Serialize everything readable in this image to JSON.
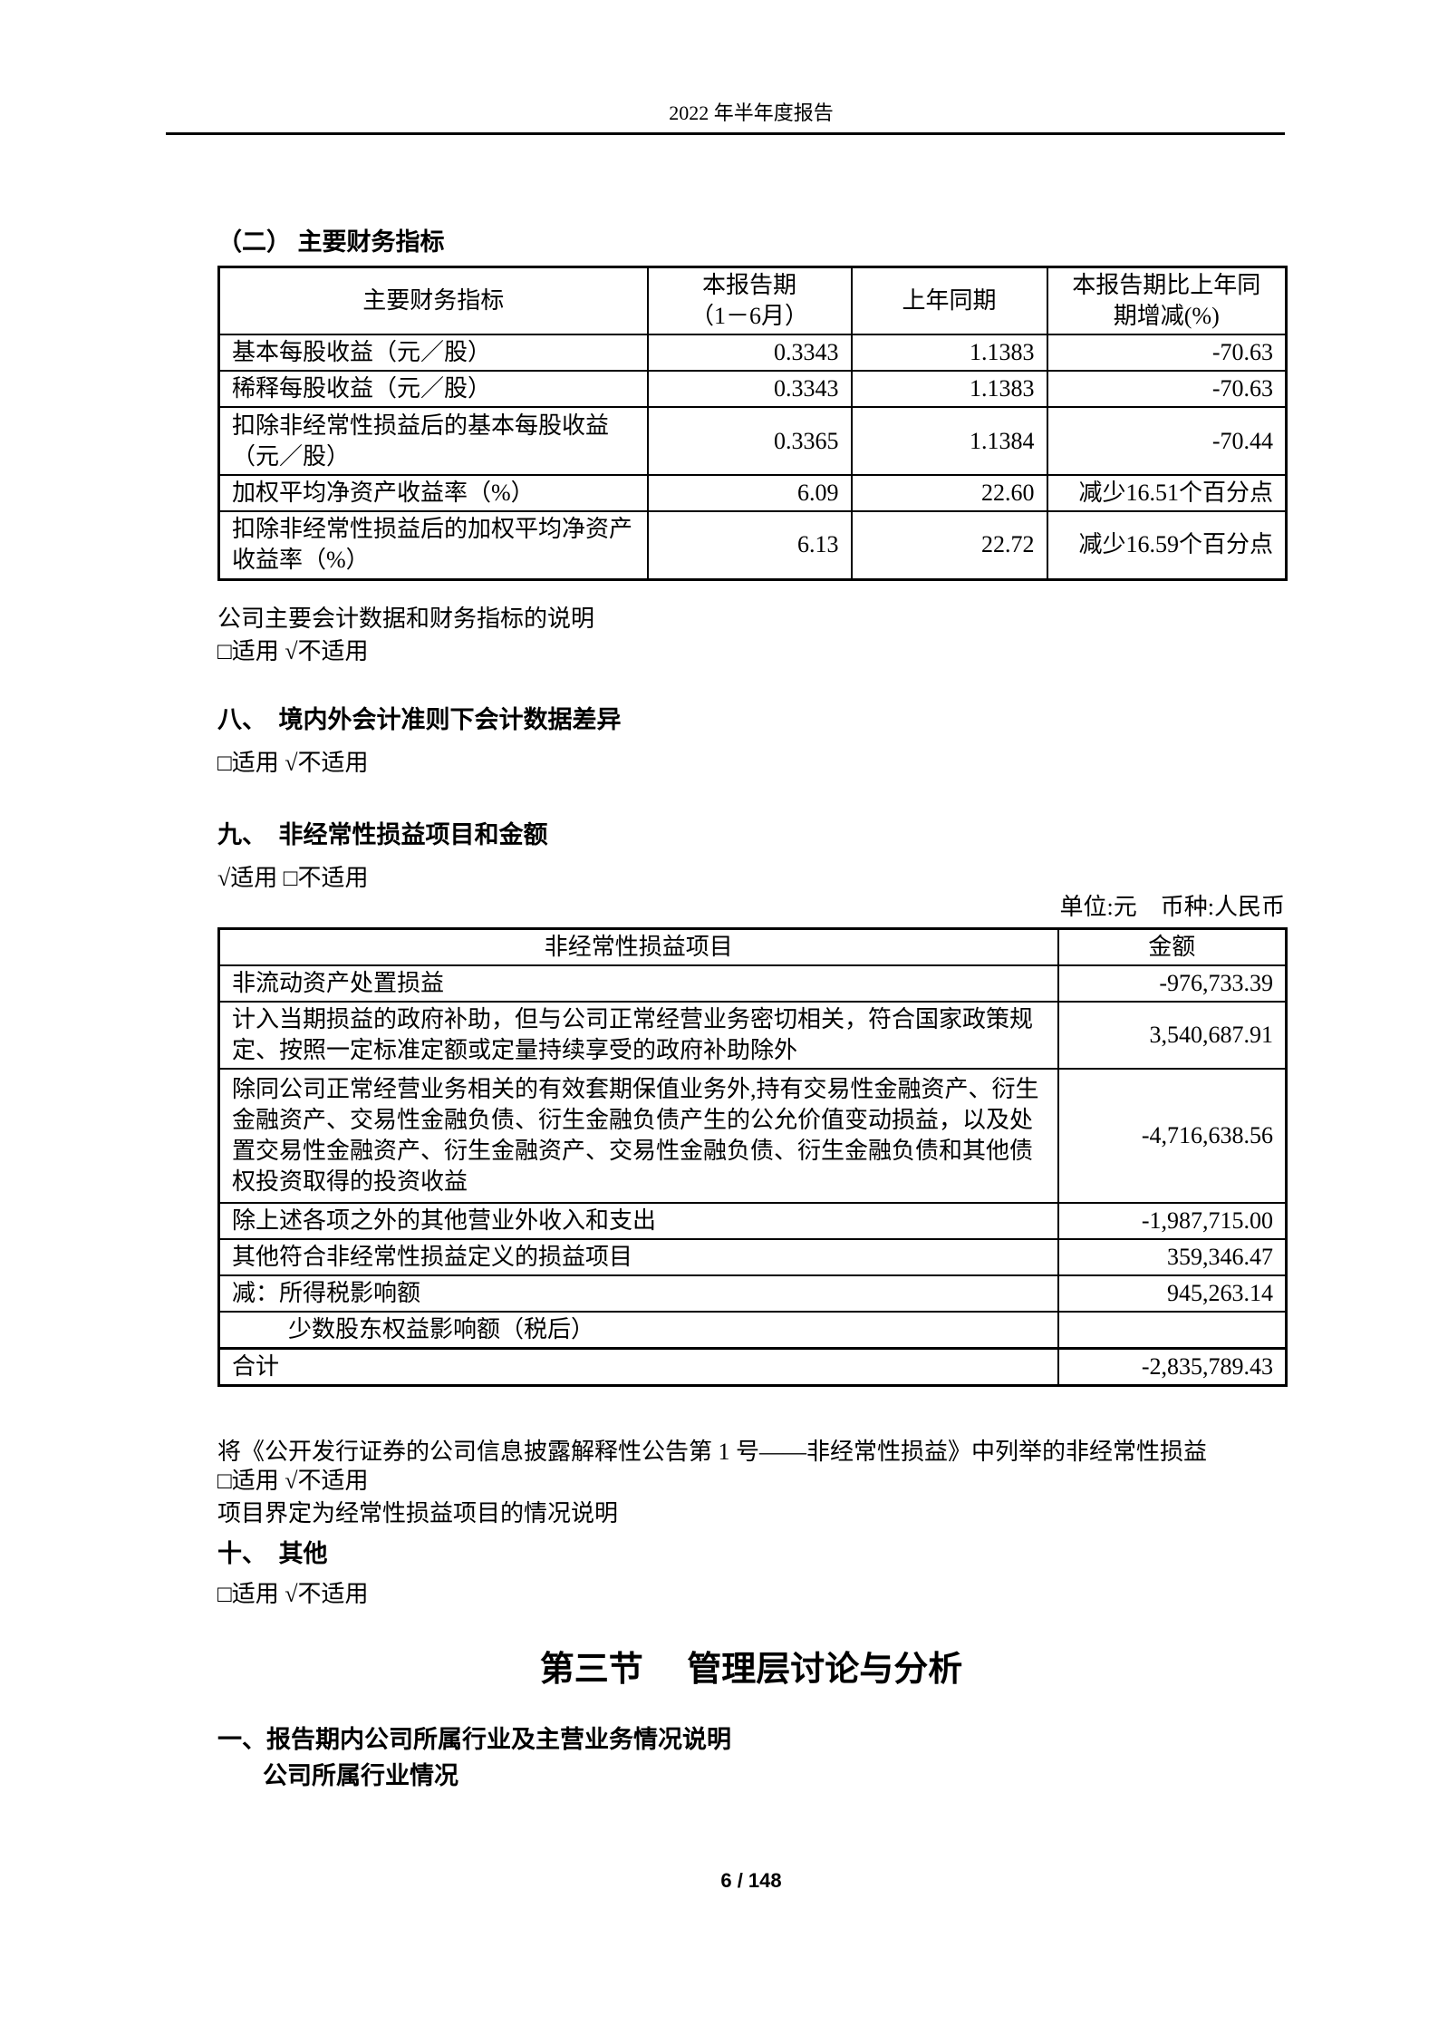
{
  "page": {
    "header_title": "2022 年半年度报告",
    "footer_page_number": "6 / 148"
  },
  "section_key_indicators": {
    "heading": "（二） 主要财务指标",
    "table": {
      "headers": [
        "主要财务指标",
        "本报告期\n（1－6月）",
        "上年同期",
        "本报告期比上年同\n期增减(%)"
      ],
      "rows": [
        [
          "基本每股收益（元／股）",
          "0.3343",
          "1.1383",
          "-70.63"
        ],
        [
          "稀释每股收益（元／股）",
          "0.3343",
          "1.1383",
          "-70.63"
        ],
        [
          "扣除非经常性损益后的基本每股收益（元／股）",
          "0.3365",
          "1.1384",
          "-70.44"
        ],
        [
          "加权平均净资产收益率（%）",
          "6.09",
          "22.60",
          "减少16.51个百分点"
        ],
        [
          "扣除非经常性损益后的加权平均净资产收益率（%）",
          "6.13",
          "22.72",
          "减少16.59个百分点"
        ]
      ]
    },
    "note": "公司主要会计数据和财务指标的说明",
    "applicability": "□适用  √不适用"
  },
  "section_eight": {
    "heading": "八、　境内外会计准则下会计数据差异",
    "applicability": "□适用  √不适用"
  },
  "section_nine": {
    "heading": "九、　非经常性损益项目和金额",
    "applicability": "√适用 □不适用",
    "unit_note": "单位:元　币种:人民币",
    "table": {
      "headers": [
        "非经常性损益项目",
        "金额"
      ],
      "rows": [
        {
          "item": "非流动资产处置损益",
          "amount": "-976,733.39"
        },
        {
          "item": "计入当期损益的政府补助，但与公司正常经营业务密切相关，符合国家政策规定、按照一定标准定额或定量持续享受的政府补助除外",
          "amount": "3,540,687.91"
        },
        {
          "item": "除同公司正常经营业务相关的有效套期保值业务外,持有交易性金融资产、衍生金融资产、交易性金融负债、衍生金融负债产生的公允价值变动损益，以及处置交易性金融资产、衍生金融资产、交易性金融负债、衍生金融负债和其他债权投资取得的投资收益",
          "amount": "-4,716,638.56"
        },
        {
          "item": "除上述各项之外的其他营业外收入和支出",
          "amount": "-1,987,715.00"
        },
        {
          "item": "其他符合非经常性损益定义的损益项目",
          "amount": "359,346.47"
        },
        {
          "item": "减：所得税影响额",
          "amount": "945,263.14"
        },
        {
          "item": "少数股东权益影响额（税后）",
          "amount": "",
          "indent": true
        },
        {
          "item": "合计",
          "amount": "-2,835,789.43",
          "total": true
        }
      ]
    },
    "closing_note_lines": [
      "将《公开发行证券的公司信息披露解释性公告第 1 号——非经常性损益》中列举的非经常性损益",
      "项目界定为经常性损益项目的情况说明"
    ],
    "closing_applicability": "□适用  √不适用"
  },
  "section_ten": {
    "heading": "十、　其他",
    "applicability": "□适用  √不适用"
  },
  "chapter_three": {
    "title": "第三节　 管理层讨论与分析",
    "item1_heading": "一、报告期内公司所属行业及主营业务情况说明",
    "sub_heading": "公司所属行业情况"
  }
}
